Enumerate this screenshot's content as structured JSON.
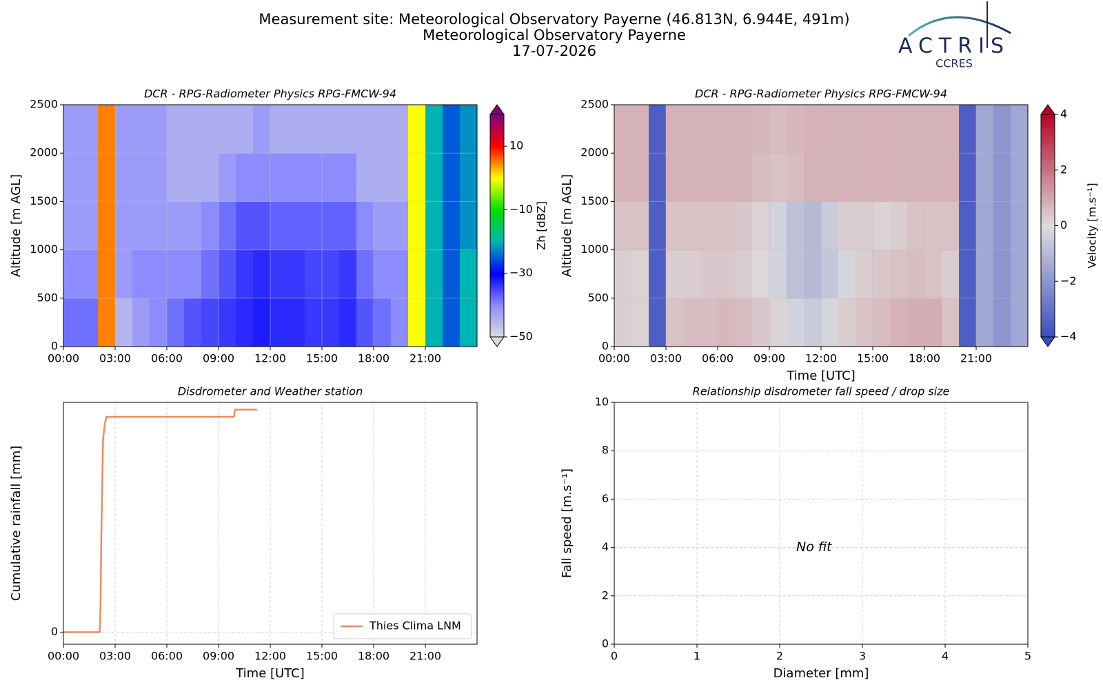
{
  "header": {
    "title_lines": [
      "Measurement site: Meteorological Observatory Payerne (46.813N, 6.944E, 491m)",
      "Meteorological Observatory Payerne",
      "17-07-2026"
    ],
    "logo": "ACTRIS",
    "logo_sub": "CCRES"
  },
  "chart_data": [
    {
      "type": "heatmap",
      "title": "DCR - RPG-Radiometer Physics RPG-FMCW-94",
      "ylabel": "Altitude [m AGL]",
      "zlabel": "Zh [dBZ]",
      "x": [
        0.5,
        1.5,
        2.5,
        3.5,
        4.5,
        5.5,
        6.5,
        7.5,
        8.5,
        9.5,
        10.5,
        11.5,
        12.5,
        13.5,
        14.5,
        15.5,
        16.5,
        17.5,
        18.5,
        19.5,
        20.5,
        21.5,
        22.5,
        23.5
      ],
      "y": [
        250,
        750,
        1250,
        1750,
        2250
      ],
      "values": [
        [
          -38,
          -38,
          5,
          -45,
          -42,
          -40,
          -38,
          -36,
          -35,
          -34,
          -33,
          -32,
          -33,
          -33,
          -34,
          -34,
          -33,
          -36,
          -38,
          -40,
          0,
          -20,
          -25,
          -20
        ],
        [
          -40,
          -40,
          5,
          -42,
          -40,
          -40,
          -40,
          -40,
          -38,
          -36,
          -34,
          -33,
          -34,
          -34,
          -35,
          -35,
          -34,
          -38,
          -40,
          -40,
          0,
          -20,
          -25,
          -20
        ],
        [
          -42,
          -42,
          5,
          -42,
          -42,
          -42,
          -42,
          -42,
          -40,
          -38,
          -36,
          -36,
          -37,
          -37,
          -37,
          -37,
          -37,
          -40,
          -42,
          -42,
          0,
          -20,
          -25,
          -22
        ],
        [
          -42,
          -42,
          5,
          -42,
          -42,
          -42,
          -44,
          -44,
          -44,
          -42,
          -40,
          -40,
          -40,
          -40,
          -40,
          -40,
          -40,
          -44,
          -44,
          -44,
          0,
          -20,
          -25,
          -22
        ],
        [
          -42,
          -42,
          5,
          -42,
          -42,
          -42,
          -44,
          -44,
          -44,
          -44,
          -44,
          -42,
          -44,
          -44,
          -44,
          -44,
          -44,
          -44,
          -44,
          -44,
          0,
          -20,
          -25,
          -22
        ]
      ],
      "xlim": [
        0,
        24
      ],
      "xticks": [
        {
          "value": 0,
          "label": "00:00"
        },
        {
          "value": 3,
          "label": "03:00"
        },
        {
          "value": 6,
          "label": "06:00"
        },
        {
          "value": 9,
          "label": "09:00"
        },
        {
          "value": 12,
          "label": "12:00"
        },
        {
          "value": 15,
          "label": "15:00"
        },
        {
          "value": 18,
          "label": "18:00"
        },
        {
          "value": 21,
          "label": "21:00"
        }
      ],
      "ylim": [
        0,
        2500
      ],
      "yticks": [
        0,
        500,
        1000,
        1500,
        2000,
        2500
      ],
      "zlim": [
        -50,
        20
      ],
      "zticks": [
        {
          "value": -50,
          "label": "−50"
        },
        {
          "value": -30,
          "label": "−30"
        },
        {
          "value": -10,
          "label": "−10"
        },
        10
      ],
      "colorscale": [
        "#dcdcdc",
        "#8c8cff",
        "#0000ff",
        "#00b4b4",
        "#00e000",
        "#ffff00",
        "#ff0000",
        "#800080"
      ],
      "grid": true
    },
    {
      "type": "heatmap",
      "title": "DCR - RPG-Radiometer Physics RPG-FMCW-94",
      "xlabel": "Time [UTC]",
      "ylabel": "Altitude [m AGL]",
      "zlabel": "Velocity [m.s⁻¹]",
      "x": [
        0.5,
        1.5,
        2.5,
        3.5,
        4.5,
        5.5,
        6.5,
        7.5,
        8.5,
        9.5,
        10.5,
        11.5,
        12.5,
        13.5,
        14.5,
        15.5,
        16.5,
        17.5,
        18.5,
        19.5,
        20.5,
        21.5,
        22.5,
        23.5
      ],
      "y": [
        250,
        750,
        1250,
        1750,
        2250
      ],
      "values": [
        [
          0.3,
          0.2,
          -3.5,
          0.5,
          0.6,
          0.6,
          0.7,
          0.6,
          0.4,
          0.2,
          -0.3,
          -0.5,
          -0.2,
          0.3,
          0.5,
          0.6,
          0.8,
          0.9,
          0.9,
          0.5,
          -3.5,
          -1.5,
          -2,
          -1.5
        ],
        [
          0.3,
          0.2,
          -3.5,
          0.3,
          0.3,
          0.4,
          0.4,
          0.3,
          0.1,
          -0.3,
          -0.8,
          -1,
          -0.6,
          -0.2,
          0.3,
          0.4,
          0.5,
          0.6,
          0.5,
          0.3,
          -3.5,
          -1.5,
          -2,
          -1.5
        ],
        [
          0.5,
          0.5,
          -3.5,
          0.5,
          0.5,
          0.5,
          0.5,
          0.4,
          0.2,
          -0.3,
          -0.8,
          -1,
          -0.5,
          0.3,
          0.3,
          0.2,
          0.3,
          0.5,
          0.5,
          0.5,
          -3.5,
          -1.5,
          -2,
          -1.5
        ],
        [
          0.8,
          0.8,
          -3.5,
          0.8,
          0.8,
          0.8,
          0.8,
          0.8,
          0.6,
          0.5,
          0.6,
          0.8,
          0.8,
          0.8,
          0.8,
          0.8,
          0.8,
          0.8,
          0.8,
          0.8,
          -3.5,
          -1.5,
          -2,
          -1.5
        ],
        [
          0.8,
          0.8,
          -3.5,
          0.8,
          0.8,
          0.8,
          0.8,
          0.8,
          0.7,
          0.6,
          0.7,
          0.8,
          0.8,
          0.8,
          0.8,
          0.8,
          0.8,
          0.8,
          0.8,
          0.8,
          -3.5,
          -1.5,
          -2,
          -1.5
        ]
      ],
      "xlim": [
        0,
        24
      ],
      "xticks": [
        {
          "value": 0,
          "label": "00:00"
        },
        {
          "value": 3,
          "label": "03:00"
        },
        {
          "value": 6,
          "label": "06:00"
        },
        {
          "value": 9,
          "label": "09:00"
        },
        {
          "value": 12,
          "label": "12:00"
        },
        {
          "value": 15,
          "label": "15:00"
        },
        {
          "value": 18,
          "label": "18:00"
        },
        {
          "value": 21,
          "label": "21:00"
        }
      ],
      "ylim": [
        0,
        2500
      ],
      "yticks": [
        0,
        500,
        1000,
        1500,
        2000,
        2500
      ],
      "zlim": [
        -4,
        4
      ],
      "zticks": [
        {
          "value": -4,
          "label": "−4"
        },
        {
          "value": -2,
          "label": "−2"
        },
        0,
        2,
        4
      ],
      "colorscale": [
        "#3b4cc0",
        "#dddddd",
        "#b40426"
      ],
      "grid": true
    },
    {
      "type": "line",
      "title": "Disdrometer and Weather station",
      "xlabel": "Time [UTC]",
      "ylabel": "Cumulative rainfall [mm]",
      "x": [
        0,
        2.1,
        2.15,
        2.2,
        2.3,
        2.4,
        2.5,
        9.9,
        9.95,
        11.25
      ],
      "series": [
        {
          "name": "Thies Clima LNM",
          "color": "#ef8a62",
          "values": [
            0,
            0,
            1,
            4,
            8,
            8.6,
            8.9,
            8.9,
            9.2,
            9.2
          ]
        }
      ],
      "xlim": [
        0,
        24
      ],
      "xticks": [
        {
          "value": 0,
          "label": "00:00"
        },
        {
          "value": 3,
          "label": "03:00"
        },
        {
          "value": 6,
          "label": "06:00"
        },
        {
          "value": 9,
          "label": "09:00"
        },
        {
          "value": 12,
          "label": "12:00"
        },
        {
          "value": 15,
          "label": "15:00"
        },
        {
          "value": 18,
          "label": "18:00"
        },
        {
          "value": 21,
          "label": "21:00"
        }
      ],
      "ylim": [
        -0.5,
        9.5
      ],
      "yticks": [
        0
      ],
      "grid": true,
      "legend": "lower right"
    },
    {
      "type": "scatter",
      "title": "Relationship disdrometer fall speed / drop size",
      "xlabel": "Diameter [mm]",
      "ylabel": "Fall speed [m.s⁻¹]",
      "xlim": [
        0,
        5
      ],
      "xticks": [
        0,
        1,
        2,
        3,
        4,
        5
      ],
      "ylim": [
        0,
        10
      ],
      "yticks": [
        0,
        2,
        4,
        6,
        8,
        10
      ],
      "grid": true,
      "annotations": [
        {
          "text": "No fit",
          "x": 2.2,
          "y": 4
        }
      ]
    }
  ]
}
